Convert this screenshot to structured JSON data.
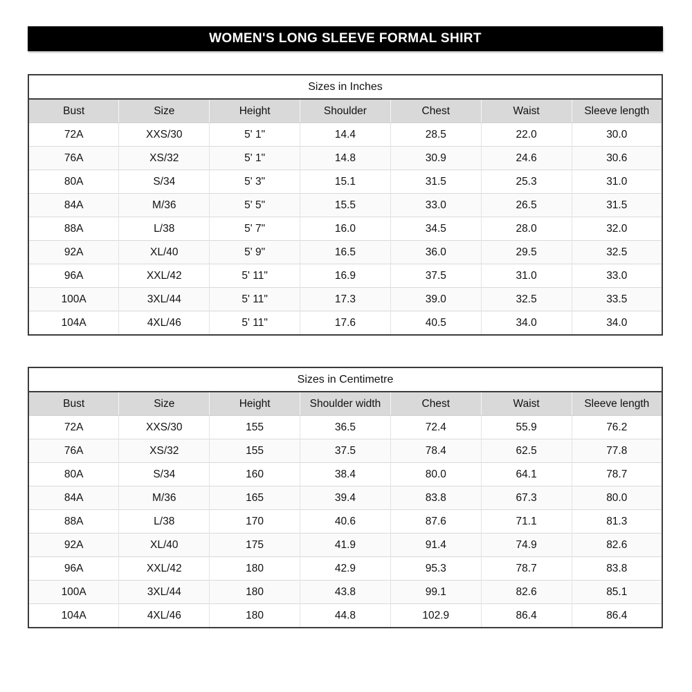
{
  "banner": {
    "title": "WOMEN'S LONG SLEEVE FORMAL SHIRT"
  },
  "colors": {
    "banner_bg": "#000000",
    "banner_text": "#ffffff",
    "header_row_bg": "#d9d9d9",
    "outer_border": "#3b3b3b",
    "grid_line": "#d9d9d9",
    "text": "#111111"
  },
  "tables": [
    {
      "title": "Sizes in Inches",
      "columns": [
        "Bust",
        "Size",
        "Height",
        "Shoulder",
        "Chest",
        "Waist",
        "Sleeve length"
      ],
      "rows": [
        [
          "72A",
          "XXS/30",
          "5' 1\"",
          "14.4",
          "28.5",
          "22.0",
          "30.0"
        ],
        [
          "76A",
          "XS/32",
          "5' 1\"",
          "14.8",
          "30.9",
          "24.6",
          "30.6"
        ],
        [
          "80A",
          "S/34",
          "5' 3\"",
          "15.1",
          "31.5",
          "25.3",
          "31.0"
        ],
        [
          "84A",
          "M/36",
          "5' 5\"",
          "15.5",
          "33.0",
          "26.5",
          "31.5"
        ],
        [
          "88A",
          "L/38",
          "5' 7\"",
          "16.0",
          "34.5",
          "28.0",
          "32.0"
        ],
        [
          "92A",
          "XL/40",
          "5' 9\"",
          "16.5",
          "36.0",
          "29.5",
          "32.5"
        ],
        [
          "96A",
          "XXL/42",
          "5' 11\"",
          "16.9",
          "37.5",
          "31.0",
          "33.0"
        ],
        [
          "100A",
          "3XL/44",
          "5' 11\"",
          "17.3",
          "39.0",
          "32.5",
          "33.5"
        ],
        [
          "104A",
          "4XL/46",
          "5' 11\"",
          "17.6",
          "40.5",
          "34.0",
          "34.0"
        ]
      ]
    },
    {
      "title": "Sizes in Centimetre",
      "columns": [
        "Bust",
        "Size",
        "Height",
        "Shoulder width",
        "Chest",
        "Waist",
        "Sleeve length"
      ],
      "rows": [
        [
          "72A",
          "XXS/30",
          "155",
          "36.5",
          "72.4",
          "55.9",
          "76.2"
        ],
        [
          "76A",
          "XS/32",
          "155",
          "37.5",
          "78.4",
          "62.5",
          "77.8"
        ],
        [
          "80A",
          "S/34",
          "160",
          "38.4",
          "80.0",
          "64.1",
          "78.7"
        ],
        [
          "84A",
          "M/36",
          "165",
          "39.4",
          "83.8",
          "67.3",
          "80.0"
        ],
        [
          "88A",
          "L/38",
          "170",
          "40.6",
          "87.6",
          "71.1",
          "81.3"
        ],
        [
          "92A",
          "XL/40",
          "175",
          "41.9",
          "91.4",
          "74.9",
          "82.6"
        ],
        [
          "96A",
          "XXL/42",
          "180",
          "42.9",
          "95.3",
          "78.7",
          "83.8"
        ],
        [
          "100A",
          "3XL/44",
          "180",
          "43.8",
          "99.1",
          "82.6",
          "85.1"
        ],
        [
          "104A",
          "4XL/46",
          "180",
          "44.8",
          "102.9",
          "86.4",
          "86.4"
        ]
      ]
    }
  ]
}
